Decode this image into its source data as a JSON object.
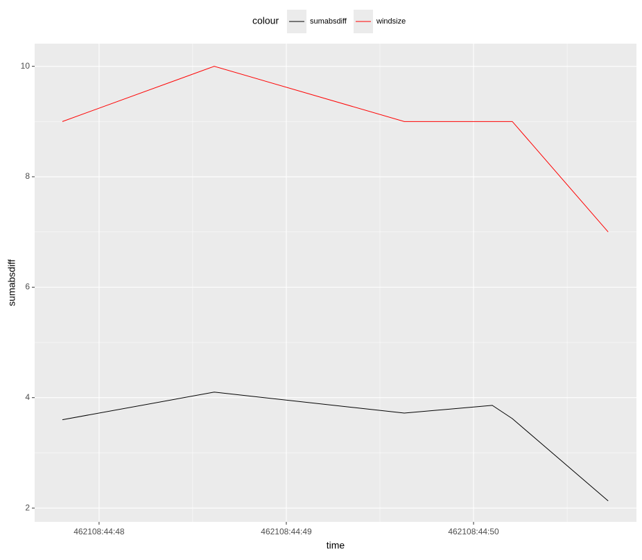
{
  "chart_data": {
    "type": "line",
    "x_label": "time",
    "y_label": "sumabsdiff",
    "legend_title": "colour",
    "legend_position": "top",
    "x": [
      1663591487.804,
      1663591488.615,
      1663591489.63,
      1663591490.1,
      1663591490.207,
      1663591490.719
    ],
    "series": [
      {
        "name": "sumabsdiff",
        "color": "#000000",
        "values": [
          3.6,
          4.1,
          3.72,
          3.86,
          3.62,
          2.13
        ]
      },
      {
        "name": "windsize",
        "color": "#ff0000",
        "values": [
          9,
          10,
          9,
          9,
          9,
          7
        ]
      }
    ],
    "xlim": [
      1663591487.656,
      1663591490.87
    ],
    "xticks": [
      {
        "value": 1663591488,
        "label": "462108:44:48"
      },
      {
        "value": 1663591489,
        "label": "462108:44:49"
      },
      {
        "value": 1663591490,
        "label": "462108:44:50"
      }
    ],
    "ylim": [
      1.75,
      10.41
    ],
    "yticks": [
      2,
      4,
      6,
      8,
      10
    ],
    "grid": true
  }
}
